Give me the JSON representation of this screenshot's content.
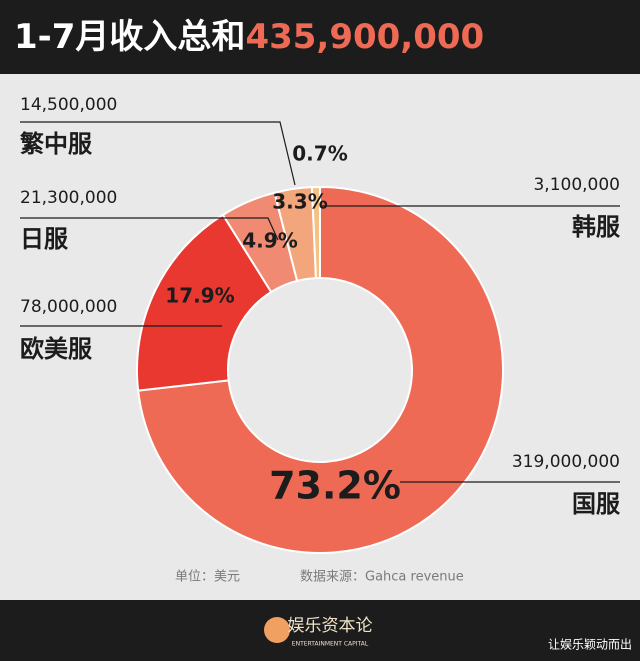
{
  "chart_data": {
    "type": "donut",
    "title": "1-7月收入总和",
    "total": "435,900,000",
    "categories": [
      "国服",
      "欧美服",
      "日服",
      "繁中服",
      "韩服"
    ],
    "values": [
      73.2,
      17.9,
      4.9,
      3.3,
      0.7
    ],
    "value_labels": [
      "73.2%",
      "17.9%",
      "4.9%",
      "3.3%",
      "0.7%"
    ],
    "colors": [
      "#ee6a55",
      "#e8382f",
      "#f08a72",
      "#f3a57c",
      "#f6c184"
    ],
    "amounts": [
      319000000,
      78000000,
      21300000,
      14500000,
      3100000
    ],
    "amount_labels": [
      "319,000,000",
      "78,000,000",
      "21,300,000",
      "14,500,000",
      "3,100,000"
    ]
  },
  "footer": {
    "unit": "单位：美元",
    "source": "数据来源：Gahca revenue",
    "logo": "娱乐资本论",
    "logo_sub": "ENTERTAINMENT CAPITAL",
    "credit": "让娱乐颖动而出"
  }
}
